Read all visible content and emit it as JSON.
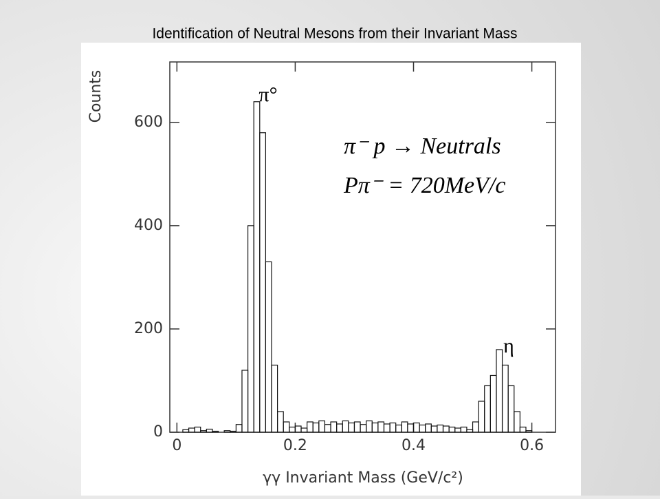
{
  "chart_data": {
    "type": "histogram",
    "title": "Identification of Neutral Mesons from their Invariant Mass",
    "xlabel": "γγ Invariant Mass (GeV/c²)",
    "ylabel": "Counts",
    "annotations": [
      "π°",
      "η",
      "π⁻ p → Neutrals",
      "Pπ⁻ = 720MeV/c"
    ],
    "bins": [
      0.01,
      0.02,
      0.03,
      0.04,
      0.05,
      0.06,
      0.07,
      0.08,
      0.09,
      0.1,
      0.11,
      0.12,
      0.13,
      0.14,
      0.15,
      0.16,
      0.17,
      0.18,
      0.19,
      0.2,
      0.21,
      0.22,
      0.23,
      0.24,
      0.25,
      0.26,
      0.27,
      0.28,
      0.29,
      0.3,
      0.31,
      0.32,
      0.33,
      0.34,
      0.35,
      0.36,
      0.37,
      0.38,
      0.39,
      0.4,
      0.41,
      0.42,
      0.43,
      0.44,
      0.45,
      0.46,
      0.47,
      0.48,
      0.49,
      0.5,
      0.51,
      0.52,
      0.53,
      0.54,
      0.55,
      0.56,
      0.57,
      0.58,
      0.59,
      0.6
    ],
    "values": [
      5,
      8,
      10,
      3,
      6,
      2,
      0,
      3,
      2,
      15,
      120,
      400,
      640,
      580,
      330,
      130,
      40,
      20,
      10,
      12,
      8,
      20,
      18,
      22,
      15,
      20,
      16,
      22,
      18,
      20,
      15,
      22,
      18,
      20,
      16,
      18,
      14,
      20,
      16,
      18,
      14,
      16,
      12,
      14,
      12,
      10,
      8,
      10,
      5,
      20,
      60,
      90,
      110,
      160,
      130,
      90,
      40,
      10,
      3
    ],
    "color": "#111111",
    "xlim": [
      -0.012,
      0.64
    ],
    "xticks": [
      0,
      0.2,
      0.4,
      0.6
    ],
    "ylim": [
      0,
      717
    ],
    "yticks": [
      0,
      200,
      400,
      600
    ]
  }
}
